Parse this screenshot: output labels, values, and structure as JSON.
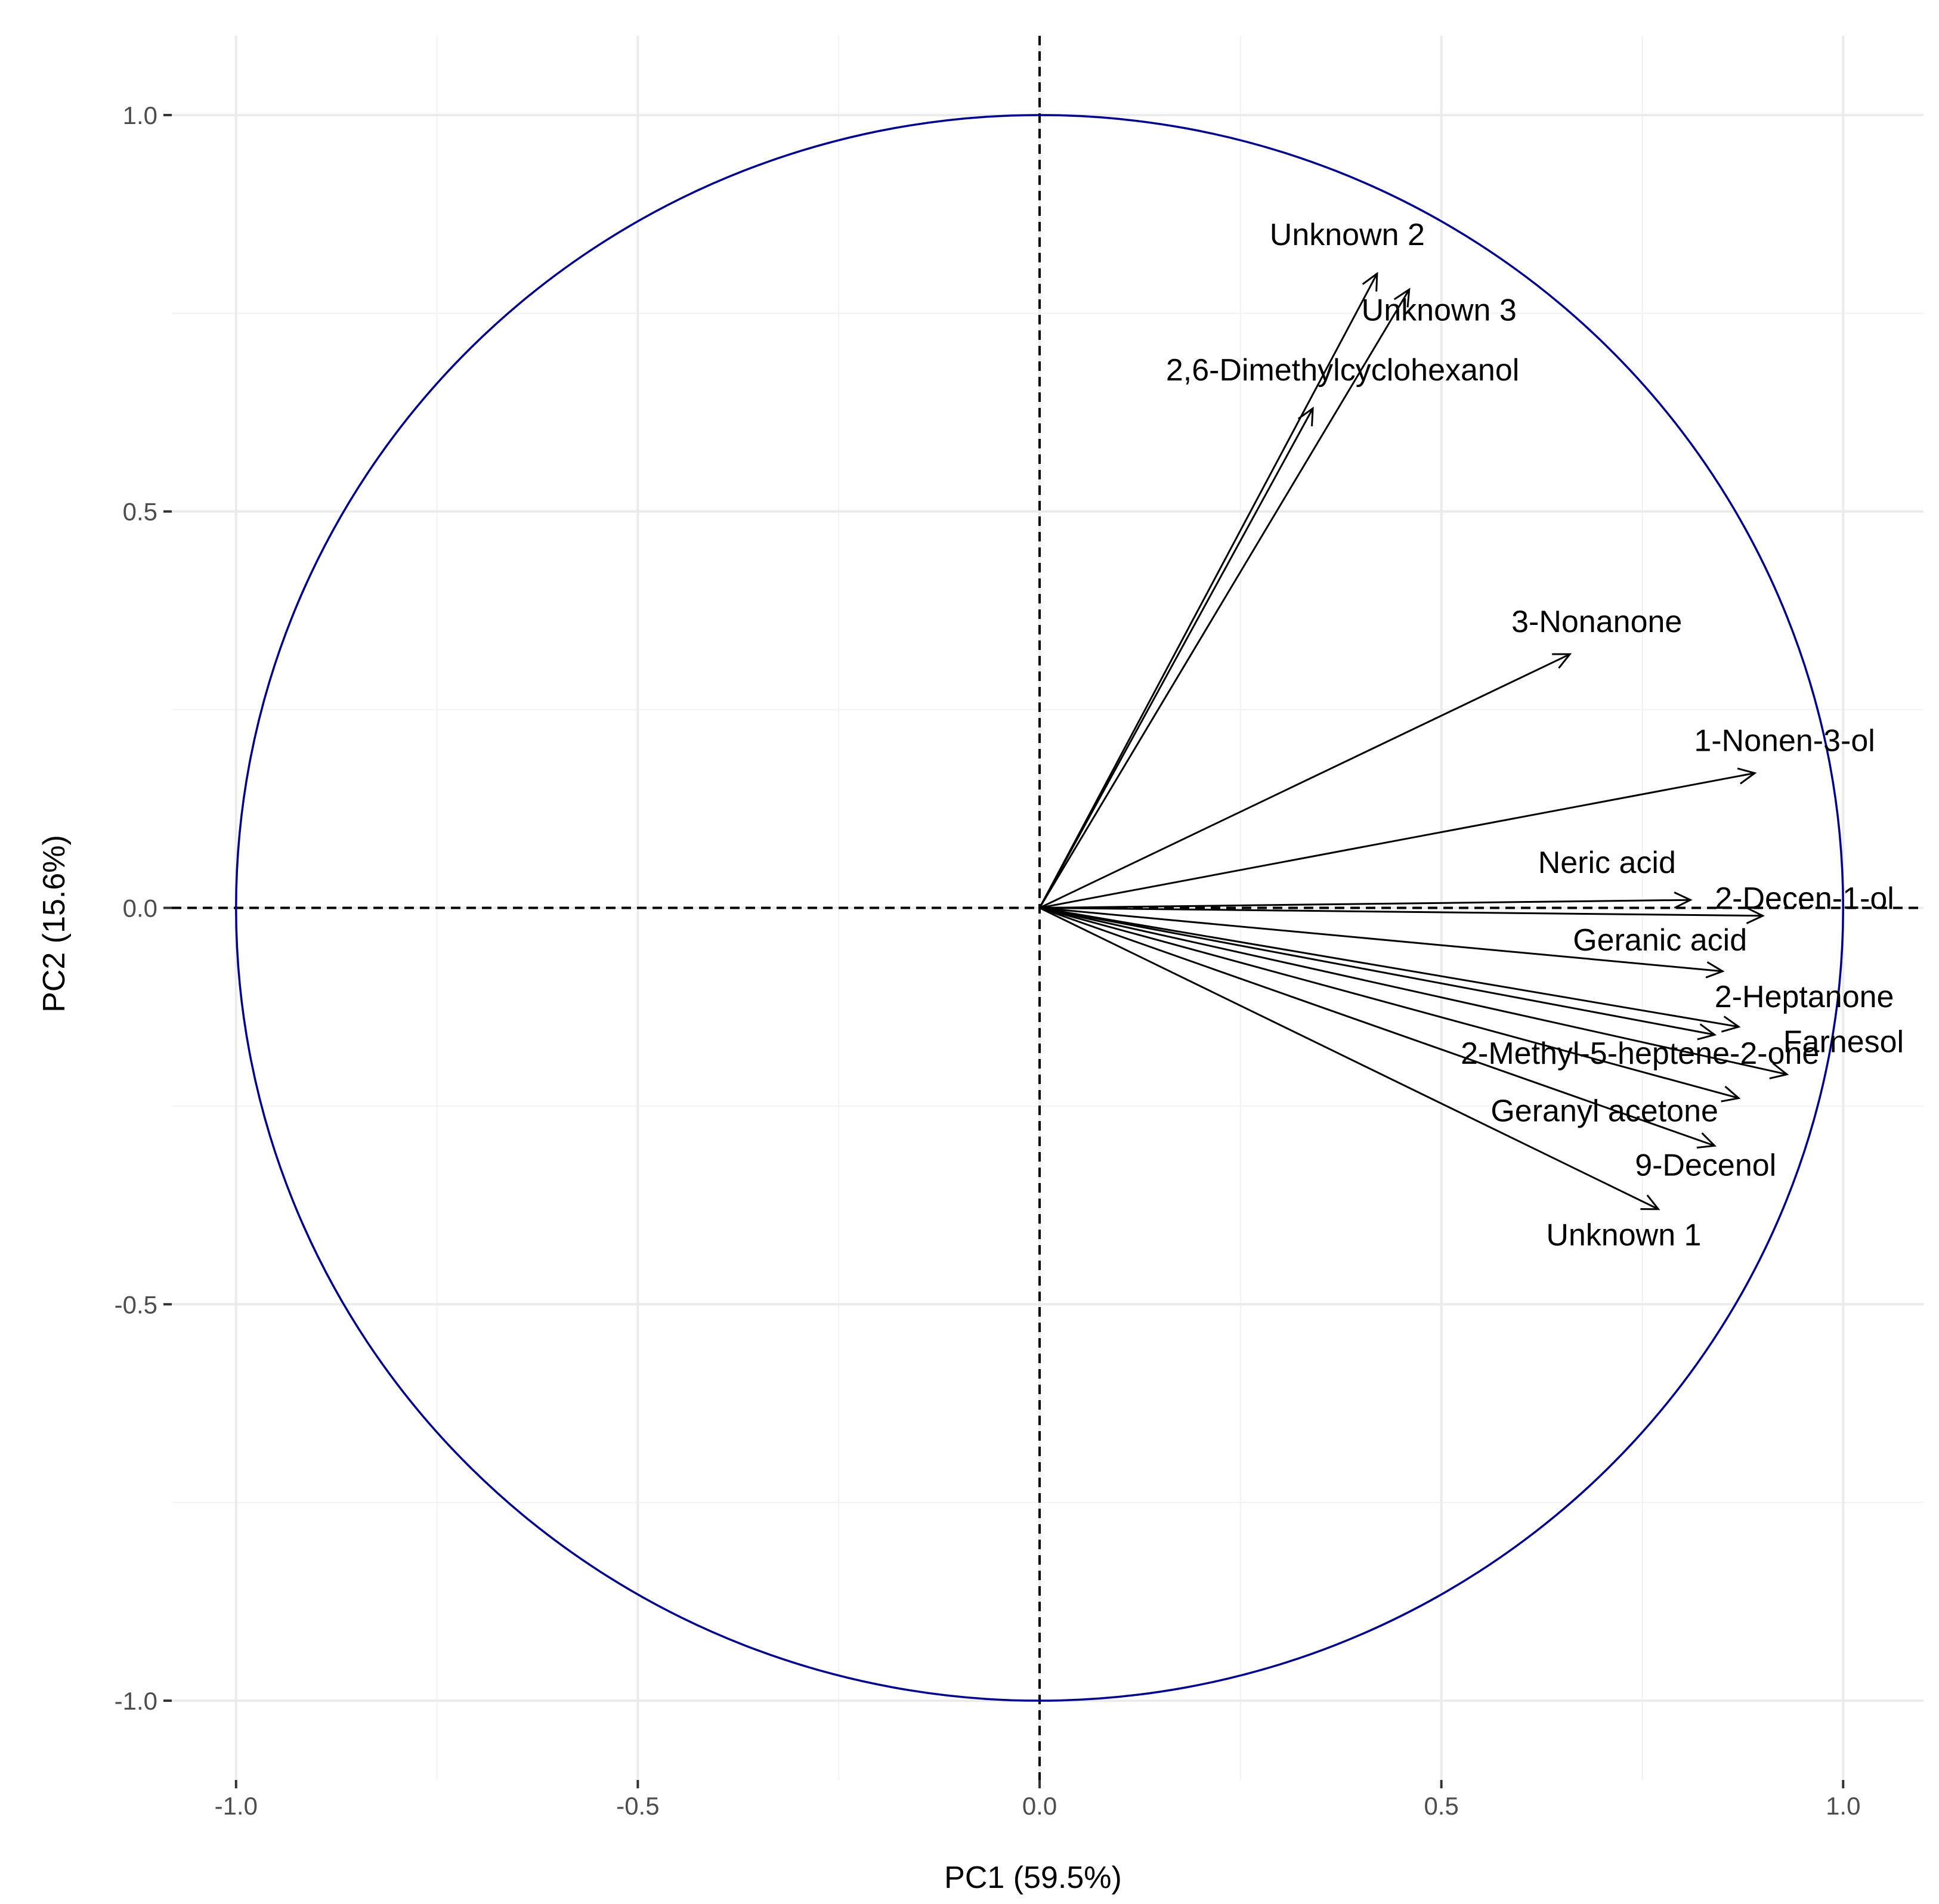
{
  "chart_data": {
    "type": "scatter",
    "subtype": "pca-variable-correlation-circle",
    "title": "",
    "xlabel": "PC1 (59.5%)",
    "ylabel": "PC2 (15.6%)",
    "xlim": [
      -1.08,
      1.1
    ],
    "ylim": [
      -1.1,
      1.1
    ],
    "x_ticks": [
      -1.0,
      -0.5,
      0.0,
      0.5,
      1.0
    ],
    "x_tick_labels": [
      "-1.0",
      "-0.5",
      "0.0",
      "0.5",
      "1.0"
    ],
    "y_ticks": [
      -1.0,
      -0.5,
      0.0,
      0.5,
      1.0
    ],
    "y_tick_labels": [
      "-1.0",
      "-0.5",
      "0.0",
      "0.5",
      "1.0"
    ],
    "grid": true,
    "reference_lines": {
      "x": 0,
      "y": 0,
      "style": "dashed"
    },
    "circle_radius": 1.0,
    "circle_color": "#00008b",
    "arrow_color": "#000000",
    "variables": [
      {
        "name": "Unknown 2",
        "x": 0.42,
        "y": 0.8,
        "label": "Unknown 2"
      },
      {
        "name": "Unknown 3",
        "x": 0.46,
        "y": 0.78,
        "label": "Unknown 3"
      },
      {
        "name": "2,6-Dimethylcyclohexanol",
        "x": 0.34,
        "y": 0.63,
        "label": "2,6-Dimethylcyclohexanol"
      },
      {
        "name": "3-Nonanone",
        "x": 0.66,
        "y": 0.32,
        "label": "3-Nonanone"
      },
      {
        "name": "1-Nonen-3-ol",
        "x": 0.89,
        "y": 0.17,
        "label": "1-Nonen-3-ol"
      },
      {
        "name": "Neric acid",
        "x": 0.81,
        "y": 0.01,
        "label": "Neric acid"
      },
      {
        "name": "2-Decen-1-ol",
        "x": 0.9,
        "y": -0.01,
        "label": "2-Decen-1-ol"
      },
      {
        "name": "Geranic acid",
        "x": 0.85,
        "y": -0.08,
        "label": "Geranic acid"
      },
      {
        "name": "2-Heptanone",
        "x": 0.87,
        "y": -0.15,
        "label": "2-Heptanone"
      },
      {
        "name": "Farnesol",
        "x": 0.93,
        "y": -0.21,
        "label": "Farnesol"
      },
      {
        "name": "2-Methyl-5-heptene-2-one",
        "x": 0.84,
        "y": -0.16,
        "label": "2-Methyl-5-heptene-2-one"
      },
      {
        "name": "Geranyl acetone",
        "x": 0.87,
        "y": -0.24,
        "label": "Geranyl acetone"
      },
      {
        "name": "9-Decenol",
        "x": 0.84,
        "y": -0.3,
        "label": "9-Decenol"
      },
      {
        "name": "Unknown 1",
        "x": 0.77,
        "y": -0.38,
        "label": "Unknown 1"
      }
    ]
  }
}
